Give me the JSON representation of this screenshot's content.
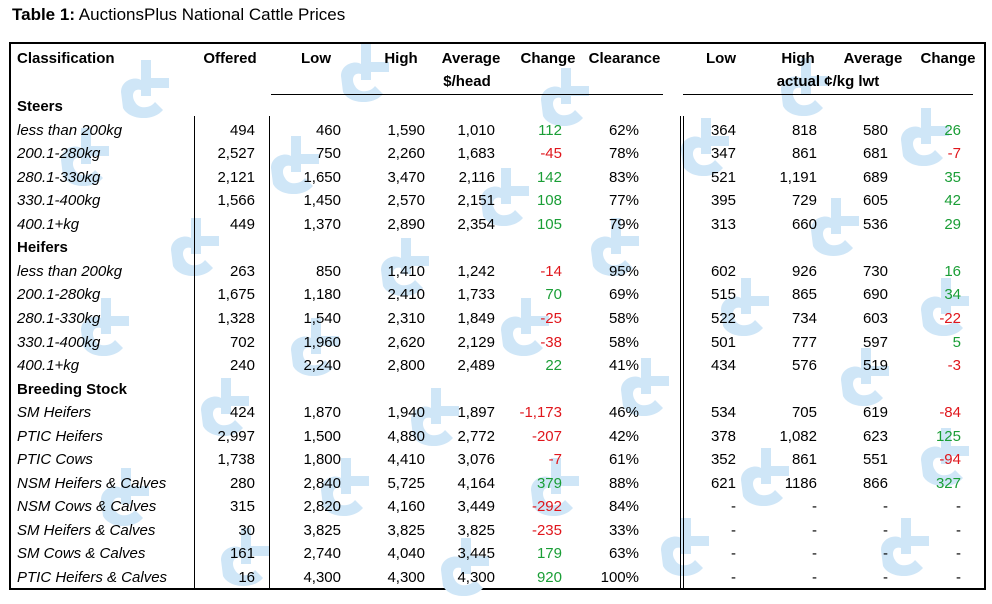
{
  "title": {
    "prefix": "Table 1:",
    "text": "AuctionsPlus National Cattle Prices"
  },
  "headers": {
    "classification": "Classification",
    "offered": "Offered",
    "low": "Low",
    "high": "High",
    "average": "Average",
    "change": "Change",
    "clearance": "Clearance",
    "low2": "Low",
    "high2": "High",
    "average2": "Average",
    "change2": "Change",
    "sub1": "$/head",
    "sub2": "actual ¢/kg lwt"
  },
  "rows": [
    {
      "type": "section",
      "label": "Steers"
    },
    {
      "type": "data",
      "label": "less than 200kg",
      "offered": "494",
      "low": "460",
      "high": "1,590",
      "avg": "1,010",
      "chg": "112",
      "chg_sign": "pos",
      "clear": "62%",
      "low2": "364",
      "high2": "818",
      "avg2": "580",
      "chg2": "26",
      "chg2_sign": "pos"
    },
    {
      "type": "data",
      "label": "200.1-280kg",
      "offered": "2,527",
      "low": "750",
      "high": "2,260",
      "avg": "1,683",
      "chg": "-45",
      "chg_sign": "neg",
      "clear": "78%",
      "low2": "347",
      "high2": "861",
      "avg2": "681",
      "chg2": "-7",
      "chg2_sign": "neg"
    },
    {
      "type": "data",
      "label": "280.1-330kg",
      "offered": "2,121",
      "low": "1,650",
      "high": "3,470",
      "avg": "2,116",
      "chg": "142",
      "chg_sign": "pos",
      "clear": "83%",
      "low2": "521",
      "high2": "1,191",
      "avg2": "689",
      "chg2": "35",
      "chg2_sign": "pos"
    },
    {
      "type": "data",
      "label": "330.1-400kg",
      "offered": "1,566",
      "low": "1,450",
      "high": "2,570",
      "avg": "2,151",
      "chg": "108",
      "chg_sign": "pos",
      "clear": "77%",
      "low2": "395",
      "high2": "729",
      "avg2": "605",
      "chg2": "42",
      "chg2_sign": "pos"
    },
    {
      "type": "data",
      "label": "400.1+kg",
      "offered": "449",
      "low": "1,370",
      "high": "2,890",
      "avg": "2,354",
      "chg": "105",
      "chg_sign": "pos",
      "clear": "79%",
      "low2": "313",
      "high2": "660",
      "avg2": "536",
      "chg2": "29",
      "chg2_sign": "pos"
    },
    {
      "type": "section",
      "label": "Heifers"
    },
    {
      "type": "data",
      "label": "less than 200kg",
      "offered": "263",
      "low": "850",
      "high": "1,410",
      "avg": "1,242",
      "chg": "-14",
      "chg_sign": "neg",
      "clear": "95%",
      "low2": "602",
      "high2": "926",
      "avg2": "730",
      "chg2": "16",
      "chg2_sign": "pos"
    },
    {
      "type": "data",
      "label": "200.1-280kg",
      "offered": "1,675",
      "low": "1,180",
      "high": "2,410",
      "avg": "1,733",
      "chg": "70",
      "chg_sign": "pos",
      "clear": "69%",
      "low2": "515",
      "high2": "865",
      "avg2": "690",
      "chg2": "34",
      "chg2_sign": "pos"
    },
    {
      "type": "data",
      "label": "280.1-330kg",
      "offered": "1,328",
      "low": "1,540",
      "high": "2,310",
      "avg": "1,849",
      "chg": "-25",
      "chg_sign": "neg",
      "clear": "58%",
      "low2": "522",
      "high2": "734",
      "avg2": "603",
      "chg2": "-22",
      "chg2_sign": "neg"
    },
    {
      "type": "data",
      "label": "330.1-400kg",
      "offered": "702",
      "low": "1,960",
      "high": "2,620",
      "avg": "2,129",
      "chg": "-38",
      "chg_sign": "neg",
      "clear": "58%",
      "low2": "501",
      "high2": "777",
      "avg2": "597",
      "chg2": "5",
      "chg2_sign": "pos"
    },
    {
      "type": "data",
      "label": "400.1+kg",
      "offered": "240",
      "low": "2,240",
      "high": "2,800",
      "avg": "2,489",
      "chg": "22",
      "chg_sign": "pos",
      "clear": "41%",
      "low2": "434",
      "high2": "576",
      "avg2": "519",
      "chg2": "-3",
      "chg2_sign": "neg"
    },
    {
      "type": "section",
      "label": "Breeding Stock"
    },
    {
      "type": "data",
      "label": "SM Heifers",
      "offered": "424",
      "low": "1,870",
      "high": "1,940",
      "avg": "1,897",
      "chg": "-1,173",
      "chg_sign": "neg",
      "clear": "46%",
      "low2": "534",
      "high2": "705",
      "avg2": "619",
      "chg2": "-84",
      "chg2_sign": "neg"
    },
    {
      "type": "data",
      "label": "PTIC Heifers",
      "offered": "2,997",
      "low": "1,500",
      "high": "4,880",
      "avg": "2,772",
      "chg": "-207",
      "chg_sign": "neg",
      "clear": "42%",
      "low2": "378",
      "high2": "1,082",
      "avg2": "623",
      "chg2": "125",
      "chg2_sign": "pos"
    },
    {
      "type": "data",
      "label": "PTIC Cows",
      "offered": "1,738",
      "low": "1,800",
      "high": "4,410",
      "avg": "3,076",
      "chg": "-7",
      "chg_sign": "neg",
      "clear": "61%",
      "low2": "352",
      "high2": "861",
      "avg2": "551",
      "chg2": "-94",
      "chg2_sign": "neg"
    },
    {
      "type": "data",
      "label": "NSM Heifers & Calves",
      "offered": "280",
      "low": "2,840",
      "high": "5,725",
      "avg": "4,164",
      "chg": "379",
      "chg_sign": "pos",
      "clear": "88%",
      "low2": "621",
      "high2": "1186",
      "avg2": "866",
      "chg2": "327",
      "chg2_sign": "pos"
    },
    {
      "type": "data",
      "label": "NSM Cows & Calves",
      "offered": "315",
      "low": "2,820",
      "high": "4,160",
      "avg": "3,449",
      "chg": "-292",
      "chg_sign": "neg",
      "clear": "84%",
      "low2": "-",
      "high2": "-",
      "avg2": "-",
      "chg2": "-",
      "chg2_sign": "none"
    },
    {
      "type": "data",
      "label": "SM Heifers & Calves",
      "offered": "30",
      "low": "3,825",
      "high": "3,825",
      "avg": "3,825",
      "chg": "-235",
      "chg_sign": "neg",
      "clear": "33%",
      "low2": "-",
      "high2": "-",
      "avg2": "-",
      "chg2": "-",
      "chg2_sign": "none"
    },
    {
      "type": "data",
      "label": "SM Cows & Calves",
      "offered": "161",
      "low": "2,740",
      "high": "4,040",
      "avg": "3,445",
      "chg": "179",
      "chg_sign": "pos",
      "clear": "63%",
      "low2": "-",
      "high2": "-",
      "avg2": "-",
      "chg2": "-",
      "chg2_sign": "none"
    },
    {
      "type": "data",
      "label": "PTIC Heifers & Calves",
      "offered": "16",
      "low": "4,300",
      "high": "4,300",
      "avg": "4,300",
      "chg": "920",
      "chg_sign": "pos",
      "clear": "100%",
      "low2": "-",
      "high2": "-",
      "avg2": "-",
      "chg2": "-",
      "chg2_sign": "none"
    }
  ],
  "colors": {
    "positive": "#1a9e36",
    "negative": "#e0161c",
    "watermark": "#cfe6f7"
  }
}
